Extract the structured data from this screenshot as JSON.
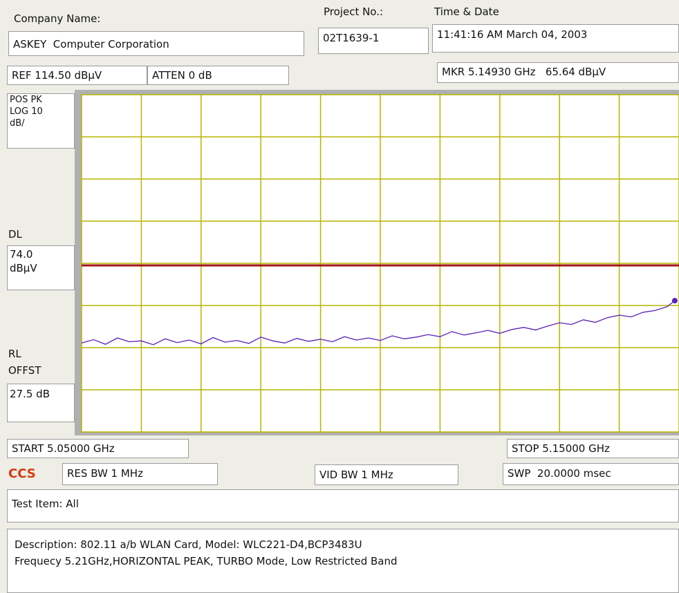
{
  "header": {
    "company_label": "Company Name:",
    "company": "ASKEY  Computer Corporation",
    "project_label": "Project No.:",
    "project": "02T1639-1",
    "time_label": "Time & Date",
    "time": "11:41:16 AM March 04, 2003"
  },
  "settings": {
    "ref": "REF 114.50 dBµV",
    "atten": "ATTEN 0 dB",
    "marker": "MKR 5.14930 GHz   65.64 dBµV",
    "detector": [
      "POS PK",
      "LOG 10",
      "dB/"
    ],
    "dl_label": "DL",
    "dl_value": [
      "74.0",
      "dBµV"
    ],
    "rl_label": [
      "RL",
      "OFFST"
    ],
    "rl_value": "27.5 dB",
    "start": "START 5.05000 GHz",
    "stop": "STOP 5.15000 GHz",
    "logo": "CCS",
    "res_bw": "RES BW 1 MHz",
    "vid_bw": "VID BW 1 MHz",
    "sweep": "SWP  20.0000 msec"
  },
  "test_item": "Test Item: All",
  "description": [
    "Description: 802.11 a/b WLAN Card, Model: WLC221-D4,BCP3483U",
    "Frequecy 5.21GHz,HORIZONTAL PEAK, TURBO Mode, Low Restricted Band"
  ],
  "chart_data": {
    "type": "line",
    "xlim": [
      5.05,
      5.15
    ],
    "xticks": [
      5.05,
      5.06,
      5.07,
      5.08,
      5.09,
      5.1,
      5.11,
      5.12,
      5.13,
      5.14,
      5.15
    ],
    "ylim": [
      34.5,
      114.5
    ],
    "yticks": [
      34.5,
      44.5,
      54.5,
      64.5,
      74.5,
      84.5,
      94.5,
      104.5,
      114.5
    ],
    "grid": true,
    "grid_color": "#b5b500",
    "display_line": 74.0,
    "display_line_color": "#a01515",
    "marker": {
      "x": 5.1493,
      "y": 65.64
    },
    "series": [
      {
        "color": "#5a20b8",
        "x": [
          5.05,
          5.052,
          5.054,
          5.056,
          5.058,
          5.06,
          5.062,
          5.064,
          5.066,
          5.068,
          5.07,
          5.072,
          5.074,
          5.076,
          5.078,
          5.08,
          5.082,
          5.084,
          5.086,
          5.088,
          5.09,
          5.092,
          5.094,
          5.096,
          5.098,
          5.1,
          5.102,
          5.104,
          5.106,
          5.108,
          5.11,
          5.112,
          5.114,
          5.116,
          5.118,
          5.12,
          5.122,
          5.124,
          5.126,
          5.128,
          5.13,
          5.132,
          5.134,
          5.136,
          5.138,
          5.14,
          5.142,
          5.144,
          5.146,
          5.148,
          5.1493
        ],
        "values": [
          55.6,
          56.4,
          55.3,
          56.8,
          55.9,
          56.1,
          55.2,
          56.6,
          55.7,
          56.3,
          55.4,
          56.9,
          55.8,
          56.2,
          55.5,
          57.0,
          56.1,
          55.6,
          56.7,
          56.0,
          56.5,
          55.9,
          57.1,
          56.3,
          56.8,
          56.2,
          57.3,
          56.6,
          57.0,
          57.6,
          57.1,
          58.3,
          57.5,
          58.0,
          58.6,
          57.9,
          58.8,
          59.3,
          58.7,
          59.6,
          60.4,
          60.0,
          61.1,
          60.5,
          61.6,
          62.2,
          61.8,
          62.9,
          63.3,
          64.2,
          65.64
        ]
      }
    ]
  }
}
